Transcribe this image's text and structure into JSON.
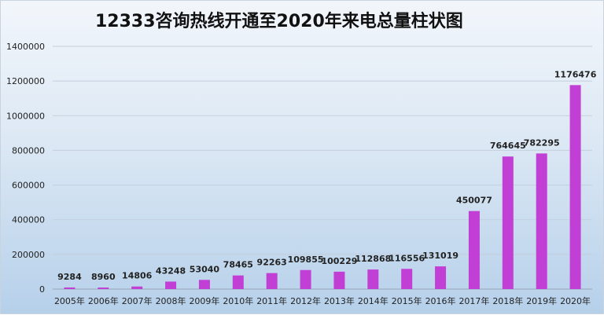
{
  "chart_data": {
    "type": "bar",
    "title": "12333咨询热线开通至2020年来电总量柱状图",
    "xlabel": "",
    "ylabel": "",
    "categories": [
      "2005年",
      "2006年",
      "2007年",
      "2008年",
      "2009年",
      "2010年",
      "2011年",
      "2012年",
      "2013年",
      "2014年",
      "2015年",
      "2016年",
      "2017年",
      "2018年",
      "2019年",
      "2020年"
    ],
    "values": [
      9284,
      8960,
      14806,
      43248,
      53040,
      78465,
      92263,
      109855,
      100229,
      112868,
      116556,
      131019,
      450077,
      764645,
      782295,
      1176476
    ],
    "data_labels": [
      "9284",
      "8960",
      "14806",
      "43248",
      "53040",
      "78465",
      "92263",
      "109855",
      "100229",
      "112868",
      "116556",
      "131019",
      "450077",
      "764645",
      "782295",
      "1176476"
    ],
    "ylim": [
      0,
      1400000
    ],
    "yticks": [
      "0",
      "200000",
      "400000",
      "600000",
      "800000",
      "1000000",
      "1200000",
      "1400000"
    ],
    "grid": true,
    "legend": "none",
    "bar_color": "#c23fd6"
  }
}
